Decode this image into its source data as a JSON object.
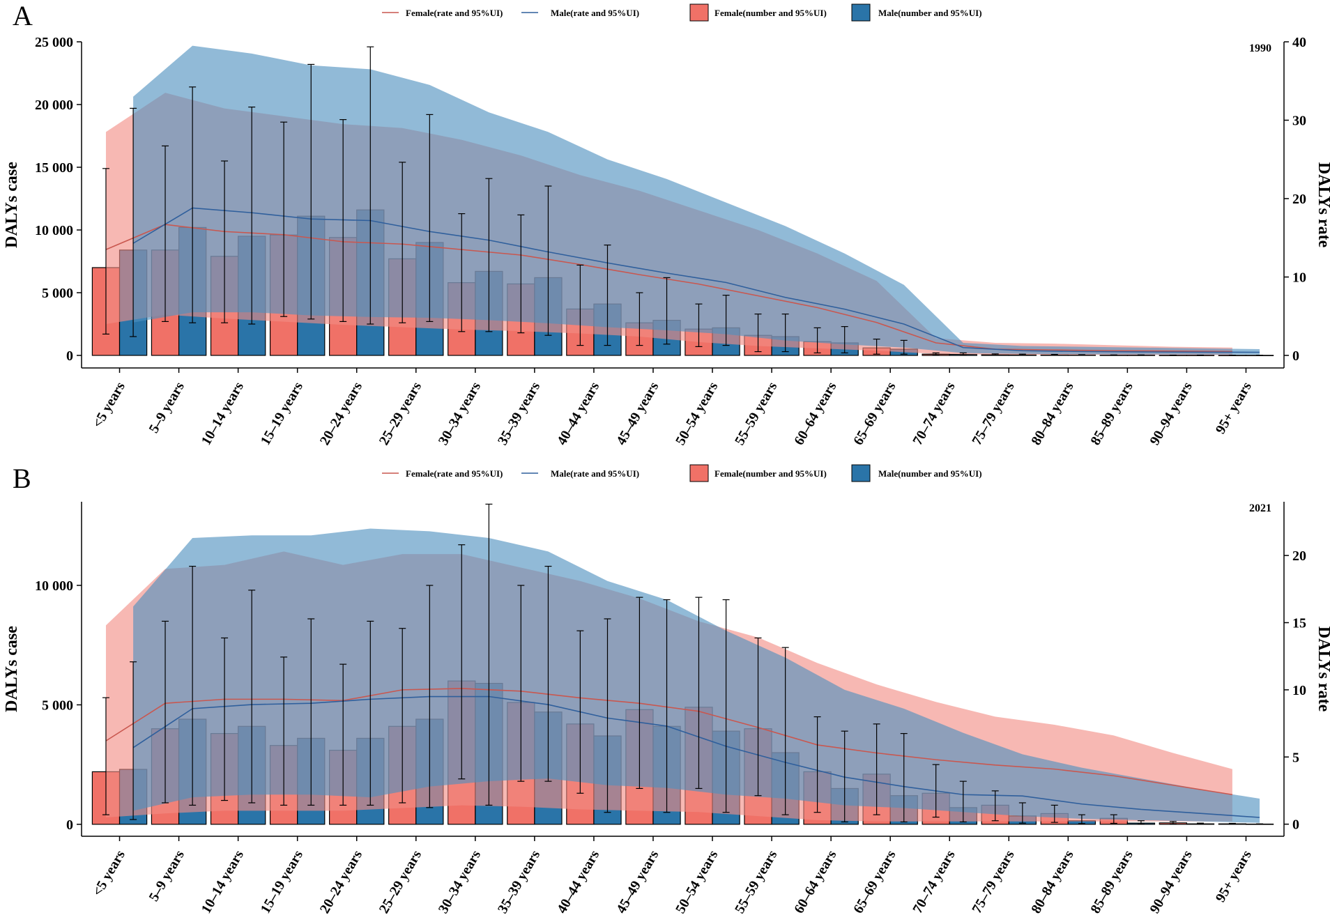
{
  "colors": {
    "female_fill": "#f07167",
    "male_fill": "#2a74a8",
    "female_band": "#f28c85",
    "male_band": "#4e8fbf",
    "female_line": "#c9574f",
    "male_line": "#2f5f9c"
  },
  "legend": {
    "female_rate": "Female(rate and 95%UI)",
    "male_rate": "Male(rate and 95%UI)",
    "female_number": "Female(number and 95%UI)",
    "male_number": "Male(number and 95%UI)"
  },
  "chart_data": [
    {
      "panel": "A",
      "title": "1990",
      "type": "bar",
      "ylabel": "DALYs case",
      "y2label": "DALYs rate",
      "ylim": [
        -1000,
        25000
      ],
      "y2lim": [
        -1.6,
        40
      ],
      "yticks": [
        0,
        5000,
        10000,
        15000,
        20000,
        25000
      ],
      "ytick_labels": [
        "0",
        "5 000",
        "10 000",
        "15 000",
        "20 000",
        "25 000"
      ],
      "y2ticks": [
        0,
        10,
        20,
        30,
        40
      ],
      "y2tick_labels": [
        "0",
        "10",
        "20",
        "30",
        "40"
      ],
      "categories": [
        "<5 years",
        "5–9 years",
        "10–14 years",
        "15–19 years",
        "20–24 years",
        "25–29 years",
        "30–34 years",
        "35–39 years",
        "40–44 years",
        "45–49 years",
        "50–54 years",
        "55–59 years",
        "60–64 years",
        "65–69 years",
        "70–74 years",
        "75–79 years",
        "80–84 years",
        "85–89 years",
        "90–94 years",
        "95+ years"
      ],
      "series": [
        {
          "name": "Female(number and 95%UI)",
          "values": [
            7000,
            8400,
            7900,
            9600,
            9400,
            7700,
            5800,
            5700,
            3700,
            2600,
            2100,
            1600,
            1100,
            600,
            100,
            60,
            40,
            20,
            10,
            5
          ],
          "lower": [
            1700,
            2700,
            2600,
            3100,
            2700,
            2600,
            1900,
            1800,
            800,
            800,
            700,
            300,
            200,
            100,
            20,
            10,
            5,
            3,
            2,
            1
          ],
          "upper": [
            14900,
            16700,
            15500,
            18600,
            18800,
            15400,
            11300,
            11200,
            7200,
            5000,
            4100,
            3300,
            2200,
            1300,
            200,
            120,
            80,
            40,
            20,
            10
          ],
          "rate": [
            13.5,
            16.7,
            15.8,
            15.4,
            14.5,
            14.2,
            13.5,
            12.8,
            11.6,
            10.3,
            9.1,
            7.6,
            6.1,
            4.2,
            1.6,
            0.8,
            0.7,
            0.6,
            0.55,
            0.5
          ],
          "rate_lower": [
            4,
            5.2,
            4.7,
            4.3,
            3.9,
            3.6,
            3.3,
            3.1,
            2.8,
            2.4,
            1.7,
            1.2,
            0.9,
            0.6,
            0.2,
            0.1,
            0.08,
            0.07,
            0.06,
            0.05
          ],
          "rate_upper": [
            28.5,
            33.5,
            31.5,
            30.5,
            29.5,
            29,
            27.5,
            25.5,
            23,
            21,
            18.5,
            16,
            13,
            9.5,
            2.2,
            1.6,
            1.5,
            1.3,
            1.1,
            1
          ]
        },
        {
          "name": "Male(number and 95%UI)",
          "values": [
            8400,
            10200,
            9500,
            11100,
            11600,
            9000,
            6700,
            6200,
            4100,
            2800,
            2200,
            1500,
            1000,
            500,
            80,
            50,
            30,
            20,
            10,
            5
          ],
          "lower": [
            1500,
            2600,
            2500,
            2900,
            2500,
            2700,
            1900,
            1600,
            800,
            900,
            800,
            300,
            200,
            100,
            20,
            10,
            5,
            3,
            2,
            1
          ],
          "upper": [
            19700,
            21400,
            19800,
            23200,
            24600,
            19200,
            14100,
            13500,
            8800,
            6200,
            4800,
            3300,
            2300,
            1200,
            200,
            100,
            60,
            40,
            20,
            10
          ],
          "rate": [
            14.3,
            18.8,
            18.2,
            17.4,
            17.2,
            15.8,
            14.7,
            13.2,
            11.8,
            10.5,
            9.3,
            7.4,
            5.9,
            4.0,
            1.0,
            0.6,
            0.5,
            0.45,
            0.42,
            0.4
          ],
          "rate_lower": [
            4.2,
            5.5,
            5.5,
            5.1,
            4.9,
            4.8,
            4.5,
            4.1,
            3.6,
            3.2,
            2.7,
            1.9,
            1.4,
            1.0,
            0.3,
            0.2,
            0.15,
            0.12,
            0.1,
            0.1
          ],
          "rate_upper": [
            33,
            39.5,
            38.5,
            37,
            36.5,
            34.5,
            31,
            28.5,
            25,
            22.5,
            19.5,
            16.5,
            13,
            9,
            1.6,
            1.2,
            1.1,
            1.0,
            0.9,
            0.8
          ]
        }
      ]
    },
    {
      "panel": "B",
      "title": "2021",
      "type": "bar",
      "ylabel": "DALYs case",
      "y2label": "DALYs rate",
      "ylim": [
        -500,
        13500
      ],
      "y2lim": [
        -0.9,
        24
      ],
      "yticks": [
        0,
        5000,
        10000
      ],
      "ytick_labels": [
        "0",
        "5 000",
        "10 000"
      ],
      "y2ticks": [
        0,
        5,
        10,
        15,
        20
      ],
      "y2tick_labels": [
        "0",
        "5",
        "10",
        "15",
        "20"
      ],
      "categories": [
        "<5 years",
        "5–9 years",
        "10–14 years",
        "15–19 years",
        "20–24 years",
        "25–29 years",
        "30–34 years",
        "35–39 years",
        "40–44 years",
        "45–49 years",
        "50–54 years",
        "55–59 years",
        "60–64 years",
        "65–69 years",
        "70–74 years",
        "75–79 years",
        "80–84 years",
        "85–89 years",
        "90–94 years",
        "95+ years"
      ],
      "series": [
        {
          "name": "Female(number and 95%UI)",
          "values": [
            2200,
            4000,
            3800,
            3300,
            3100,
            4100,
            6000,
            5100,
            4200,
            4800,
            4900,
            4000,
            2200,
            2100,
            1300,
            800,
            450,
            250,
            60,
            20
          ],
          "lower": [
            400,
            900,
            1000,
            800,
            800,
            900,
            1900,
            1800,
            1300,
            1500,
            1500,
            1200,
            500,
            400,
            300,
            150,
            80,
            40,
            10,
            5
          ],
          "upper": [
            5300,
            8500,
            7800,
            7000,
            6700,
            8200,
            11700,
            10000,
            8100,
            9500,
            9500,
            7800,
            4500,
            4200,
            2500,
            1400,
            800,
            400,
            120,
            40
          ],
          "rate": [
            6.2,
            9.0,
            9.3,
            9.3,
            9.2,
            10.0,
            10.1,
            9.9,
            9.4,
            9.0,
            8.4,
            7.2,
            5.9,
            5.3,
            4.8,
            4.4,
            4.1,
            3.6,
            2.9,
            2.2
          ],
          "rate_lower": [
            0.5,
            0.8,
            1.0,
            1.0,
            1.0,
            1.2,
            1.4,
            1.3,
            1.1,
            1.0,
            0.9,
            0.6,
            0.3,
            0.2,
            0.2,
            0.2,
            0.2,
            0.2,
            0.2,
            0.2
          ],
          "rate_upper": [
            14.8,
            19.0,
            19.3,
            20.3,
            19.3,
            20.1,
            20.1,
            19.1,
            18.1,
            16.8,
            15.1,
            13.9,
            12.0,
            10.4,
            9.1,
            8.0,
            7.4,
            6.6,
            5.3,
            4.1
          ]
        },
        {
          "name": "Male(number and 95%UI)",
          "values": [
            2300,
            4400,
            4100,
            3600,
            3600,
            4400,
            5900,
            4700,
            3700,
            4100,
            3900,
            3000,
            1500,
            1200,
            700,
            350,
            150,
            50,
            20,
            10
          ],
          "lower": [
            200,
            800,
            900,
            800,
            800,
            700,
            800,
            1800,
            500,
            500,
            500,
            400,
            100,
            100,
            100,
            50,
            30,
            10,
            5,
            2
          ],
          "upper": [
            6800,
            10800,
            9800,
            8600,
            8500,
            10000,
            13400,
            10800,
            8600,
            9400,
            9400,
            7400,
            3900,
            3800,
            1800,
            900,
            400,
            150,
            50,
            20
          ],
          "rate": [
            5.7,
            8.6,
            8.9,
            9.0,
            9.3,
            9.5,
            9.5,
            8.9,
            7.9,
            7.3,
            5.8,
            4.6,
            3.5,
            2.8,
            2.2,
            2.1,
            1.5,
            1.1,
            0.8,
            0.5
          ],
          "rate_lower": [
            1.0,
            2.0,
            2.2,
            2.2,
            2.0,
            2.8,
            3.2,
            3.4,
            2.9,
            2.7,
            2.2,
            1.9,
            1.4,
            1.2,
            0.9,
            0.6,
            0.4,
            0.3,
            0.2,
            0.1
          ],
          "rate_upper": [
            16.2,
            21.3,
            21.5,
            21.5,
            22.0,
            21.8,
            21.3,
            20.3,
            18.1,
            16.7,
            14.4,
            12.4,
            10.0,
            8.6,
            6.8,
            5.2,
            4.2,
            3.4,
            2.6,
            1.9
          ]
        }
      ]
    }
  ]
}
